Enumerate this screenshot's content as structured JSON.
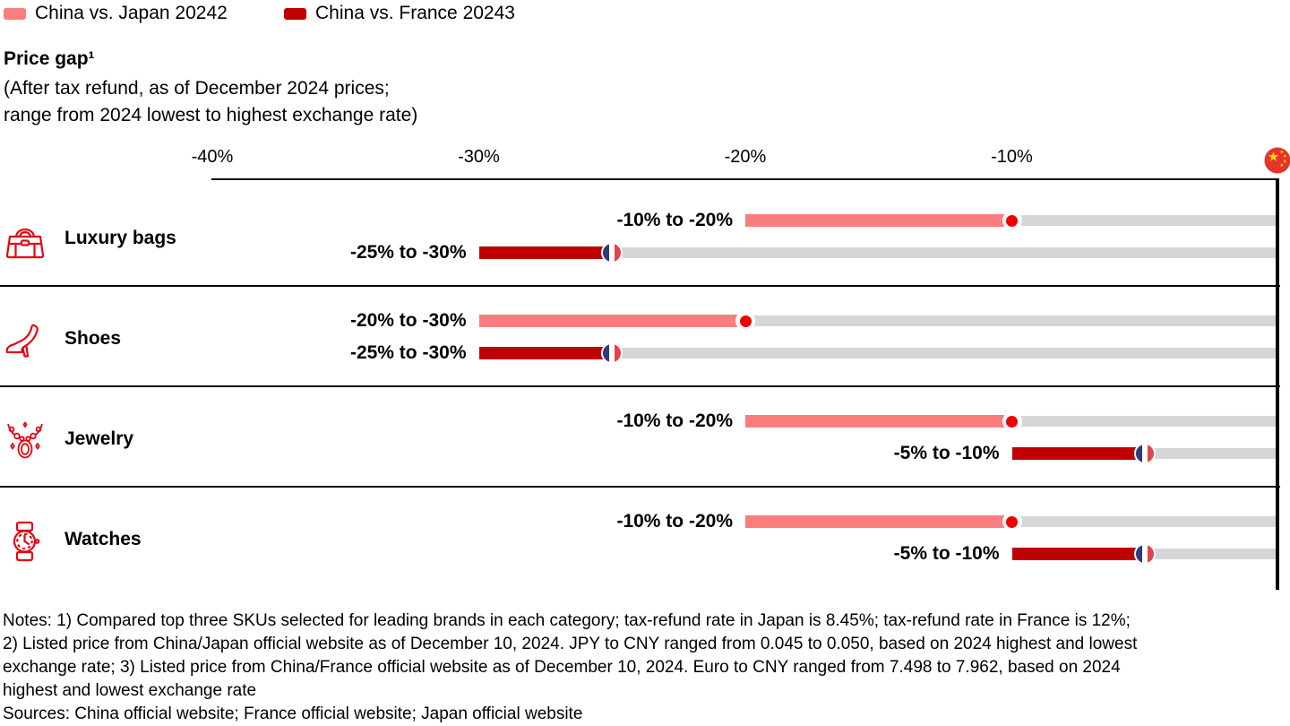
{
  "legend": {
    "items": [
      {
        "label": "China vs. Japan 20242",
        "color": "#F97D7D",
        "marker": "japan-flag"
      },
      {
        "label": "China vs. France 20243",
        "color": "#C00000",
        "marker": "france-flag"
      }
    ]
  },
  "header": {
    "title": "Price gap¹",
    "subtitle_line1": "(After tax refund, as of December 2024 prices;",
    "subtitle_line2": "range from 2024 lowest to highest exchange rate)"
  },
  "chart_data": {
    "type": "bar",
    "variant": "horizontal-range-bars-with-flag-markers",
    "title": "Price gap (After tax refund, as of December 2024 prices; range from 2024 lowest to highest exchange rate)",
    "axis": {
      "unit": "%",
      "min": -40,
      "max": 0,
      "ticks": [
        {
          "label": "-40%",
          "value": -40
        },
        {
          "label": "-30%",
          "value": -30
        },
        {
          "label": "-20%",
          "value": -20
        },
        {
          "label": "-10%",
          "value": -10
        }
      ],
      "zero_line_marker": "china-flag",
      "grid": false
    },
    "track_color": "#D6D6D6",
    "categories": [
      "Luxury bags",
      "Shoes",
      "Jewelry",
      "Watches"
    ],
    "category_icons": [
      "handbag-icon",
      "high-heel-shoe-icon",
      "necklace-icon",
      "wristwatch-icon"
    ],
    "icon_color": "#E30613",
    "series": [
      {
        "name": "China vs. Japan 20242",
        "color": "#F97D7D",
        "marker": "japan-flag",
        "data": [
          {
            "category": "Luxury bags",
            "label": "-10% to -20%",
            "from": -20,
            "to": -10
          },
          {
            "category": "Shoes",
            "label": "-20% to -30%",
            "from": -30,
            "to": -20
          },
          {
            "category": "Jewelry",
            "label": "-10% to -20%",
            "from": -20,
            "to": -10
          },
          {
            "category": "Watches",
            "label": "-10% to -20%",
            "from": -20,
            "to": -10
          }
        ]
      },
      {
        "name": "China vs. France 20243",
        "color": "#C00000",
        "marker": "france-flag",
        "data": [
          {
            "category": "Luxury bags",
            "label": "-25% to -30%",
            "from": -30,
            "to": -25
          },
          {
            "category": "Shoes",
            "label": "-25% to -30%",
            "from": -30,
            "to": -25
          },
          {
            "category": "Jewelry",
            "label": "-5% to -10%",
            "from": -10,
            "to": -5
          },
          {
            "category": "Watches",
            "label": "-5% to -10%",
            "from": -10,
            "to": -5
          }
        ]
      }
    ]
  },
  "notes": {
    "lines": [
      "Notes: 1) Compared top three SKUs selected for leading brands in each category; tax-refund rate in Japan is 8.45%; tax-refund rate in France is 12%;",
      "2) Listed price from China/Japan official website as of December 10, 2024. JPY to CNY ranged from 0.045 to 0.050, based on 2024 highest and lowest",
      "exchange rate; 3) Listed price from China/France official website as of December 10, 2024. Euro to CNY ranged from 7.498 to 7.962, based on 2024",
      "highest and lowest exchange rate",
      "Sources: China official website; France official website; Japan official website"
    ]
  }
}
